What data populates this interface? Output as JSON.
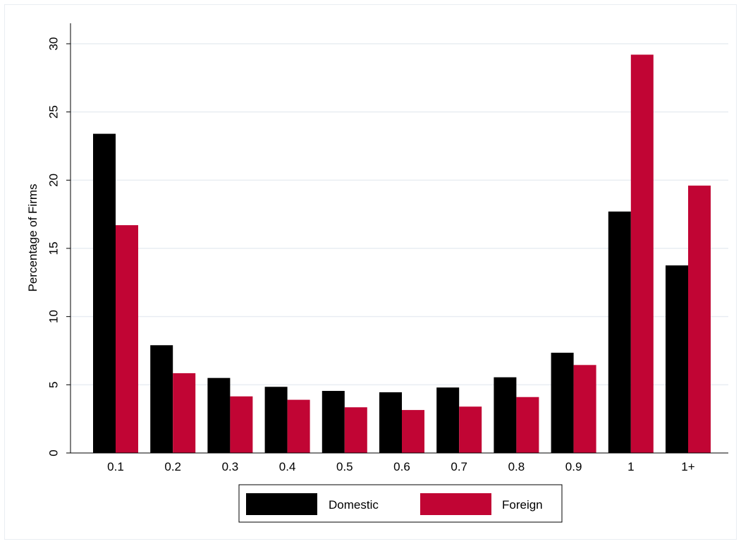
{
  "chart_data": {
    "type": "bar",
    "categories": [
      "0.1",
      "0.2",
      "0.3",
      "0.4",
      "0.5",
      "0.6",
      "0.7",
      "0.8",
      "0.9",
      "1",
      "1+"
    ],
    "series": [
      {
        "name": "Domestic",
        "color": "#000000",
        "values": [
          23.4,
          7.9,
          5.5,
          4.85,
          4.55,
          4.45,
          4.8,
          5.55,
          7.35,
          17.7,
          13.75
        ]
      },
      {
        "name": "Foreign",
        "color": "#c10534",
        "values": [
          16.7,
          5.85,
          4.15,
          3.9,
          3.35,
          3.15,
          3.4,
          4.1,
          6.45,
          29.2,
          19.6
        ]
      }
    ],
    "title": "",
    "xlabel": "",
    "ylabel": "Percentage of Firms",
    "ylim": [
      0,
      30
    ],
    "yticks": [
      "0",
      "5",
      "10",
      "15",
      "20",
      "25",
      "30"
    ],
    "grid": true,
    "legend_position": "bottom-center"
  }
}
